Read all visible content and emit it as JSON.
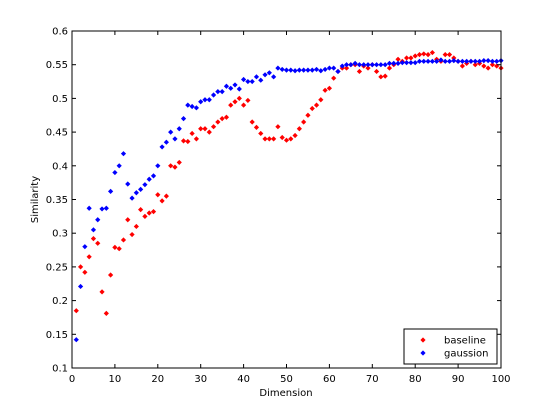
{
  "chart_data": {
    "type": "scatter",
    "xlabel": "Dimension",
    "ylabel": "Similarity",
    "xlim": [
      0,
      100
    ],
    "ylim": [
      0.1,
      0.6
    ],
    "xticks": [
      0,
      10,
      20,
      30,
      40,
      50,
      60,
      70,
      80,
      90,
      100
    ],
    "yticks": [
      0.1,
      0.15,
      0.2,
      0.25,
      0.3,
      0.35,
      0.4,
      0.45,
      0.5,
      0.55,
      0.6
    ],
    "xtick_labels": [
      "0",
      "10",
      "20",
      "30",
      "40",
      "50",
      "60",
      "70",
      "80",
      "90",
      "100"
    ],
    "ytick_labels": [
      "0.1",
      "0.15",
      "0.2",
      "0.25",
      "0.3",
      "0.35",
      "0.4",
      "0.45",
      "0.5",
      "0.55",
      "0.6"
    ],
    "grid": false,
    "legend_position": "bottom-right",
    "marker": "diamond",
    "series": [
      {
        "name": "baseline",
        "color": "#ff0000",
        "x": [
          1,
          2,
          3,
          4,
          5,
          6,
          7,
          8,
          9,
          10,
          11,
          12,
          13,
          14,
          15,
          16,
          17,
          18,
          19,
          20,
          21,
          22,
          23,
          24,
          25,
          26,
          27,
          28,
          29,
          30,
          31,
          32,
          33,
          34,
          35,
          36,
          37,
          38,
          39,
          40,
          41,
          42,
          43,
          44,
          45,
          46,
          47,
          48,
          49,
          50,
          51,
          52,
          53,
          54,
          55,
          56,
          57,
          58,
          59,
          60,
          61,
          62,
          63,
          64,
          65,
          66,
          67,
          68,
          69,
          70,
          71,
          72,
          73,
          74,
          75,
          76,
          77,
          78,
          79,
          80,
          81,
          82,
          83,
          84,
          85,
          86,
          87,
          88,
          89,
          90,
          91,
          92,
          93,
          94,
          95,
          96,
          97,
          98,
          99,
          100
        ],
        "y": [
          0.185,
          0.25,
          0.242,
          0.265,
          0.292,
          0.285,
          0.213,
          0.181,
          0.238,
          0.279,
          0.277,
          0.29,
          0.32,
          0.298,
          0.31,
          0.335,
          0.325,
          0.33,
          0.332,
          0.357,
          0.348,
          0.355,
          0.4,
          0.398,
          0.405,
          0.437,
          0.436,
          0.448,
          0.44,
          0.455,
          0.455,
          0.45,
          0.458,
          0.465,
          0.47,
          0.472,
          0.49,
          0.495,
          0.5,
          0.49,
          0.497,
          0.465,
          0.457,
          0.448,
          0.44,
          0.44,
          0.44,
          0.458,
          0.442,
          0.438,
          0.44,
          0.445,
          0.455,
          0.465,
          0.475,
          0.485,
          0.49,
          0.498,
          0.512,
          0.515,
          0.53,
          0.54,
          0.545,
          0.545,
          0.55,
          0.55,
          0.54,
          0.548,
          0.545,
          0.55,
          0.54,
          0.532,
          0.533,
          0.545,
          0.55,
          0.558,
          0.555,
          0.56,
          0.56,
          0.563,
          0.565,
          0.566,
          0.565,
          0.568,
          0.558,
          0.555,
          0.565,
          0.565,
          0.56,
          0.555,
          0.548,
          0.552,
          0.555,
          0.55,
          0.552,
          0.548,
          0.545,
          0.55,
          0.548,
          0.545
        ]
      },
      {
        "name": "gaussion",
        "color": "#0000ff",
        "x": [
          1,
          2,
          3,
          4,
          5,
          6,
          7,
          8,
          9,
          10,
          11,
          12,
          13,
          14,
          15,
          16,
          17,
          18,
          19,
          20,
          21,
          22,
          23,
          24,
          25,
          26,
          27,
          28,
          29,
          30,
          31,
          32,
          33,
          34,
          35,
          36,
          37,
          38,
          39,
          40,
          41,
          42,
          43,
          44,
          45,
          46,
          47,
          48,
          49,
          50,
          51,
          52,
          53,
          54,
          55,
          56,
          57,
          58,
          59,
          60,
          61,
          62,
          63,
          64,
          65,
          66,
          67,
          68,
          69,
          70,
          71,
          72,
          73,
          74,
          75,
          76,
          77,
          78,
          79,
          80,
          81,
          82,
          83,
          84,
          85,
          86,
          87,
          88,
          89,
          90,
          91,
          92,
          93,
          94,
          95,
          96,
          97,
          98,
          99,
          100
        ],
        "y": [
          0.142,
          0.221,
          0.28,
          0.337,
          0.305,
          0.32,
          0.336,
          0.337,
          0.362,
          0.39,
          0.4,
          0.418,
          0.373,
          0.352,
          0.36,
          0.365,
          0.372,
          0.38,
          0.385,
          0.4,
          0.428,
          0.435,
          0.45,
          0.44,
          0.455,
          0.47,
          0.49,
          0.488,
          0.486,
          0.495,
          0.498,
          0.498,
          0.505,
          0.51,
          0.51,
          0.518,
          0.515,
          0.52,
          0.514,
          0.528,
          0.525,
          0.525,
          0.532,
          0.527,
          0.535,
          0.538,
          0.532,
          0.545,
          0.543,
          0.542,
          0.542,
          0.541,
          0.542,
          0.542,
          0.542,
          0.542,
          0.543,
          0.541,
          0.543,
          0.545,
          0.545,
          0.54,
          0.548,
          0.55,
          0.55,
          0.552,
          0.55,
          0.55,
          0.55,
          0.55,
          0.55,
          0.55,
          0.55,
          0.552,
          0.552,
          0.552,
          0.553,
          0.553,
          0.553,
          0.553,
          0.555,
          0.555,
          0.555,
          0.555,
          0.555,
          0.557,
          0.555,
          0.555,
          0.556,
          0.555,
          0.555,
          0.555,
          0.555,
          0.555,
          0.555,
          0.556,
          0.556,
          0.555,
          0.555,
          0.556
        ]
      }
    ]
  }
}
